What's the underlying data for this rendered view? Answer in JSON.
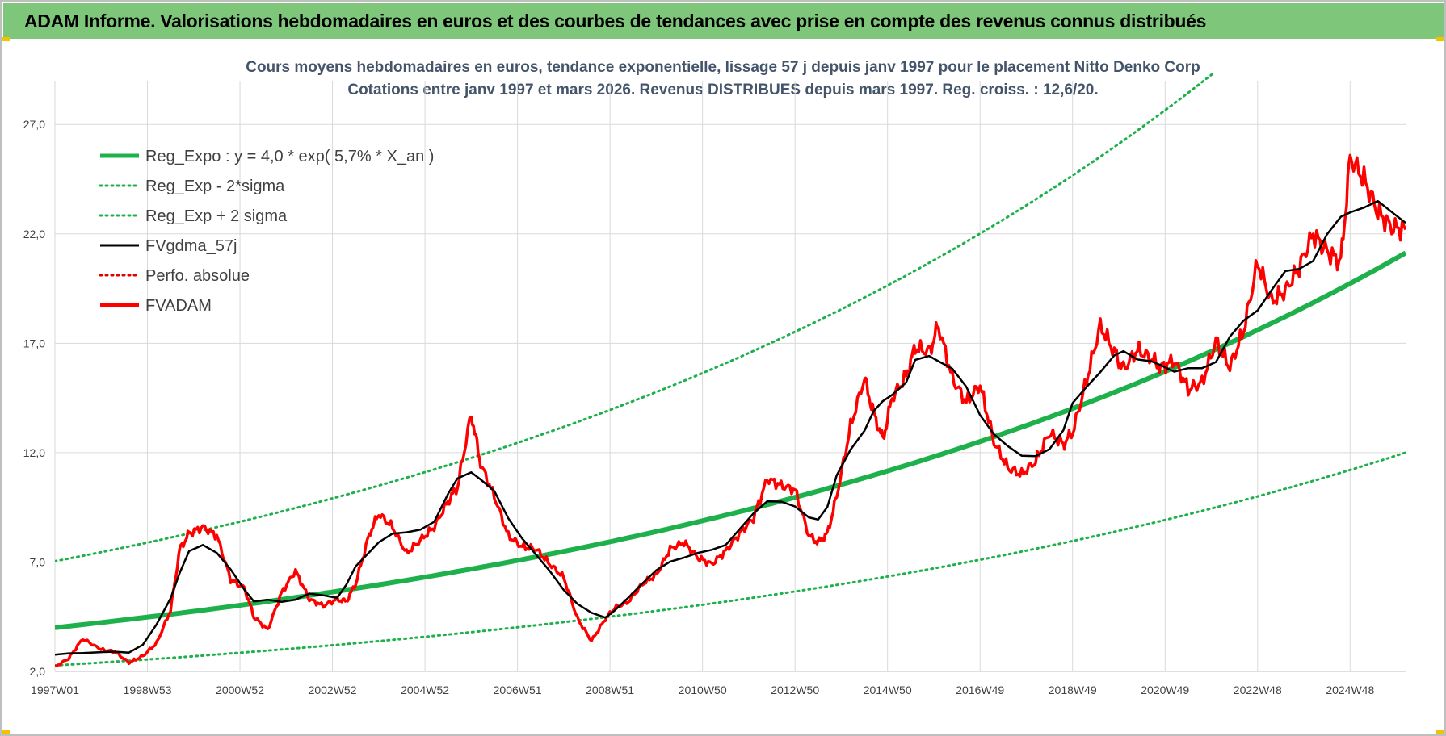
{
  "banner": {
    "title": "ADAM Informe. Valorisations hebdomadaires en euros et des courbes de tendances avec prise en compte des revenus connus distribués"
  },
  "chart_data": {
    "type": "line",
    "title_line1": "Cours moyens hebdomadaires en euros, tendance exponentielle, lissage 57 j depuis janv 1997 pour le placement Nitto Denko Corp",
    "title_line2": "Cotations entre janv 1997 et mars 2026. Revenus DISTRIBUES depuis mars 1997. Reg. croiss. : 12,6/20.",
    "ylim": [
      2,
      29
    ],
    "y_ticks": [
      2,
      7,
      12,
      17,
      22,
      27
    ],
    "y_tick_labels": [
      "2,0",
      "7,0",
      "12,0",
      "17,0",
      "22,0",
      "27,0"
    ],
    "x_range": [
      1997.0,
      2026.2
    ],
    "x_ticks": [
      1997.0,
      1999.0,
      2001.0,
      2003.0,
      2005.0,
      2007.0,
      2009.0,
      2011.0,
      2013.0,
      2015.0,
      2017.0,
      2019.0,
      2021.0,
      2023.0,
      2025.0
    ],
    "x_tick_labels": [
      "1997W01",
      "1998W53",
      "2000W52",
      "2002W52",
      "2004W52",
      "2006W51",
      "2008W51",
      "2010W50",
      "2012W50",
      "2014W50",
      "2016W49",
      "2018W49",
      "2020W49",
      "2022W48",
      "2024W48"
    ],
    "grid": true,
    "legend_position": "top-left",
    "colors": {
      "trend": "#1db04b",
      "band": "#1db04b",
      "smooth": "#000000",
      "perfo": "#e00000",
      "price": "#ff0000",
      "grid": "#d9d9d9"
    },
    "regression": {
      "a": 4.0,
      "growth": 0.057,
      "sigma_factor": 1.76
    },
    "series": [
      {
        "name": "Reg_Expo : y = 4,0 * exp( 5,7% *  X_an )",
        "style": "thick-solid",
        "color": "#1db04b",
        "kind": "regression",
        "factor": 1.0
      },
      {
        "name": "Reg_Exp - 2*sigma",
        "style": "dotted",
        "color": "#1db04b",
        "kind": "regression",
        "factor": 0.568
      },
      {
        "name": "Reg_Exp + 2 sigma",
        "style": "dotted",
        "color": "#1db04b",
        "kind": "regression",
        "factor": 1.76
      },
      {
        "name": "FVgdma_57j",
        "style": "solid",
        "color": "#000000",
        "kind": "smooth"
      },
      {
        "name": "Perfo. absolue",
        "style": "dotted",
        "color": "#e00000",
        "kind": "hidden"
      },
      {
        "name": "FVADAM",
        "style": "thick-solid",
        "color": "#ff0000",
        "kind": "price",
        "x": [
          1997.0,
          1997.3,
          1997.6,
          1998.0,
          1998.3,
          1998.6,
          1998.9,
          1999.2,
          1999.5,
          1999.7,
          1999.9,
          2000.2,
          2000.5,
          2000.8,
          2001.1,
          2001.3,
          2001.6,
          2001.9,
          2002.2,
          2002.5,
          2002.8,
          2003.1,
          2003.3,
          2003.5,
          2003.8,
          2004.0,
          2004.3,
          2004.6,
          2004.9,
          2005.2,
          2005.5,
          2005.7,
          2006.0,
          2006.2,
          2006.5,
          2006.8,
          2007.1,
          2007.4,
          2007.7,
          2008.0,
          2008.3,
          2008.6,
          2008.9,
          2009.1,
          2009.4,
          2009.7,
          2010.0,
          2010.3,
          2010.6,
          2010.9,
          2011.2,
          2011.5,
          2011.8,
          2012.1,
          2012.4,
          2012.7,
          2013.0,
          2013.3,
          2013.5,
          2013.7,
          2013.9,
          2014.2,
          2014.5,
          2014.7,
          2014.9,
          2015.1,
          2015.4,
          2015.6,
          2015.9,
          2016.1,
          2016.4,
          2016.7,
          2017.0,
          2017.3,
          2017.6,
          2017.9,
          2018.2,
          2018.5,
          2018.8,
          2019.0,
          2019.3,
          2019.6,
          2019.9,
          2020.1,
          2020.4,
          2020.7,
          2020.9,
          2021.2,
          2021.5,
          2021.8,
          2022.1,
          2022.4,
          2022.7,
          2023.0,
          2023.3,
          2023.6,
          2023.9,
          2024.2,
          2024.5,
          2024.8,
          2025.0,
          2025.3,
          2025.6,
          2025.9,
          2026.2
        ],
        "values": [
          2.2,
          2.6,
          3.5,
          3.0,
          2.9,
          2.4,
          2.7,
          3.3,
          4.8,
          7.6,
          8.3,
          8.6,
          8.2,
          6.2,
          5.8,
          4.5,
          3.9,
          5.6,
          6.6,
          5.3,
          5.0,
          5.3,
          5.2,
          6.0,
          8.3,
          9.2,
          8.6,
          7.4,
          8.0,
          8.6,
          9.8,
          10.4,
          13.8,
          11.5,
          10.0,
          8.2,
          7.7,
          7.6,
          6.9,
          6.3,
          4.4,
          3.4,
          4.4,
          4.9,
          5.2,
          6.0,
          6.4,
          7.6,
          7.9,
          7.2,
          6.9,
          7.5,
          8.3,
          9.0,
          10.8,
          10.5,
          10.3,
          8.2,
          7.9,
          8.3,
          10.0,
          13.2,
          15.4,
          13.8,
          12.6,
          14.5,
          15.5,
          16.8,
          16.6,
          17.8,
          15.4,
          14.3,
          15.1,
          12.5,
          11.3,
          11.0,
          11.6,
          12.9,
          12.4,
          12.9,
          15.3,
          17.8,
          16.6,
          15.8,
          16.7,
          16.3,
          15.9,
          16.2,
          14.9,
          15.2,
          17.1,
          15.9,
          17.6,
          20.7,
          18.9,
          19.4,
          20.5,
          22.0,
          21.2,
          20.7,
          25.5,
          24.5,
          23.0,
          22.3,
          22.2
        ]
      }
    ],
    "smooth": {
      "window_points": 2
    }
  },
  "legend": {
    "items": [
      "Reg_Expo : y = 4,0 * exp( 5,7% *  X_an )",
      "Reg_Exp - 2*sigma",
      "Reg_Exp + 2 sigma",
      "FVgdma_57j",
      "Perfo. absolue",
      "FVADAM"
    ]
  }
}
